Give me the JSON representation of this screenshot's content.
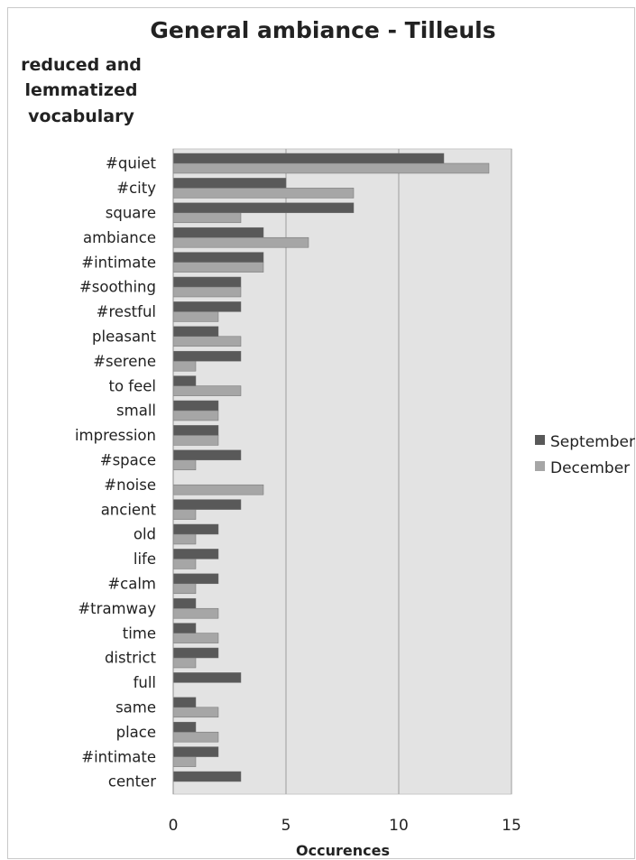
{
  "chart_data": {
    "type": "bar",
    "orientation": "horizontal",
    "title": "General ambiance - Tilleuls",
    "ylabel": [
      "reduced and",
      "lemmatized",
      "vocabulary"
    ],
    "xlabel": "Occurences",
    "xlim": [
      0,
      15
    ],
    "xticks": [
      "0",
      "5",
      "10",
      "15"
    ],
    "grid": "vertical",
    "legend_position": "right",
    "categories": [
      "#quiet",
      "#city",
      "square",
      "ambiance",
      "#intimate",
      "#soothing",
      "#restful",
      "pleasant",
      "#serene",
      "to feel",
      "small",
      "impression",
      "#space",
      "#noise",
      "ancient",
      "old",
      "life",
      "#calm",
      "#tramway",
      "time",
      "district",
      "full",
      "same",
      "place",
      "#intimate",
      "center"
    ],
    "series": [
      {
        "name": "September",
        "color": "#595959",
        "values": [
          12,
          5,
          8,
          4,
          4,
          3,
          3,
          2,
          3,
          1,
          2,
          2,
          3,
          0,
          3,
          2,
          2,
          2,
          1,
          1,
          2,
          3,
          1,
          1,
          2,
          3
        ]
      },
      {
        "name": "December",
        "color": "#a6a6a6",
        "values": [
          14,
          8,
          3,
          6,
          4,
          3,
          2,
          3,
          1,
          3,
          2,
          2,
          1,
          4,
          1,
          1,
          1,
          1,
          2,
          2,
          1,
          0,
          2,
          2,
          1,
          0
        ]
      }
    ]
  }
}
